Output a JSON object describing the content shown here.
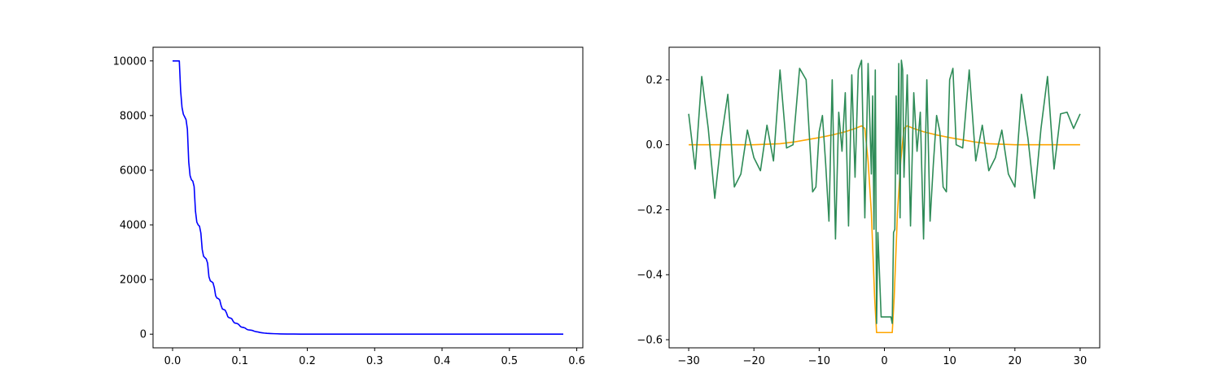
{
  "chart_data": [
    {
      "type": "line",
      "title": "",
      "xlabel": "",
      "ylabel": "",
      "xlim": [
        -0.029,
        0.609
      ],
      "ylim": [
        -500,
        10500
      ],
      "xticks": [
        0.0,
        0.1,
        0.2,
        0.3,
        0.4,
        0.5,
        0.6
      ],
      "xtick_labels": [
        "0.0",
        "0.1",
        "0.2",
        "0.3",
        "0.4",
        "0.5",
        "0.6"
      ],
      "yticks": [
        0,
        2000,
        4000,
        6000,
        8000,
        10000
      ],
      "ytick_labels": [
        "0",
        "2000",
        "4000",
        "6000",
        "8000",
        "10000"
      ],
      "grid": false,
      "series": [
        {
          "color": "#0000ff",
          "x": [
            0.0,
            0.005,
            0.01,
            0.012,
            0.014,
            0.016,
            0.018,
            0.02,
            0.022,
            0.024,
            0.026,
            0.028,
            0.03,
            0.032,
            0.034,
            0.036,
            0.038,
            0.04,
            0.042,
            0.044,
            0.046,
            0.048,
            0.05,
            0.052,
            0.054,
            0.056,
            0.058,
            0.06,
            0.062,
            0.064,
            0.066,
            0.068,
            0.07,
            0.072,
            0.074,
            0.076,
            0.078,
            0.08,
            0.082,
            0.084,
            0.086,
            0.088,
            0.09,
            0.092,
            0.094,
            0.096,
            0.098,
            0.1,
            0.102,
            0.104,
            0.106,
            0.108,
            0.11,
            0.112,
            0.115,
            0.118,
            0.121,
            0.124,
            0.127,
            0.13,
            0.133,
            0.136,
            0.14,
            0.145,
            0.15,
            0.155,
            0.16,
            0.17,
            0.18,
            0.19,
            0.2,
            0.22,
            0.24,
            0.26,
            0.3,
            0.35,
            0.4,
            0.5,
            0.58
          ],
          "y": [
            10000,
            10000,
            10000,
            8900,
            8300,
            8050,
            7950,
            7850,
            7500,
            6300,
            5800,
            5650,
            5600,
            5400,
            4500,
            4100,
            4000,
            3950,
            3700,
            3100,
            2850,
            2800,
            2750,
            2600,
            2100,
            1950,
            1920,
            1880,
            1700,
            1400,
            1320,
            1300,
            1250,
            1050,
            920,
            900,
            880,
            780,
            640,
            600,
            590,
            560,
            470,
            410,
            400,
            390,
            360,
            300,
            260,
            250,
            240,
            220,
            180,
            160,
            150,
            140,
            110,
            90,
            80,
            60,
            50,
            40,
            30,
            25,
            18,
            14,
            10,
            6,
            4,
            2,
            1,
            0,
            0,
            0,
            0,
            0,
            0,
            0,
            0
          ]
        }
      ]
    },
    {
      "type": "line",
      "title": "",
      "xlabel": "",
      "ylabel": "",
      "xlim": [
        -33.0,
        33.0
      ],
      "ylim": [
        -0.625,
        0.3
      ],
      "xticks": [
        -30,
        -20,
        -10,
        0,
        10,
        20,
        30
      ],
      "xtick_labels": [
        "−30",
        "−20",
        "−10",
        "0",
        "10",
        "20",
        "30"
      ],
      "yticks": [
        -0.6,
        -0.4,
        -0.2,
        0.0,
        0.2
      ],
      "ytick_labels": [
        "−0.6",
        "−0.4",
        "−0.2",
        "0.0",
        "0.2"
      ],
      "grid": false,
      "series": [
        {
          "color": "#ffa500",
          "x": [
            -30,
            -25,
            -20,
            -16,
            -14,
            -12,
            -10,
            -8,
            -6,
            -4.5,
            -3.5,
            -3.0,
            -2.5,
            -2.0,
            -1.5,
            -1.2,
            -1.0,
            -0.5,
            0.0,
            0.5,
            1.0,
            1.2,
            1.5,
            2.0,
            2.5,
            3.0,
            3.5,
            4.5,
            6,
            8,
            10,
            12,
            14,
            16,
            20,
            25,
            30
          ],
          "y": [
            0.0,
            0.0,
            0.0,
            0.003,
            0.008,
            0.015,
            0.022,
            0.03,
            0.04,
            0.05,
            0.058,
            0.05,
            -0.05,
            -0.21,
            -0.47,
            -0.578,
            -0.578,
            -0.578,
            -0.578,
            -0.578,
            -0.578,
            -0.578,
            -0.47,
            -0.21,
            -0.05,
            0.05,
            0.058,
            0.05,
            0.04,
            0.03,
            0.022,
            0.015,
            0.008,
            0.003,
            0.0,
            0.0,
            0.0
          ]
        },
        {
          "color": "#2e8b57",
          "x": [
            -30.0,
            -29.0,
            -28.0,
            -27.0,
            -26.0,
            -25.0,
            -24.0,
            -23.0,
            -22.0,
            -21.0,
            -20.0,
            -19.0,
            -18.0,
            -17.0,
            -16.0,
            -15.0,
            -14.0,
            -13.0,
            -12.0,
            -11.0,
            -10.5,
            -10.0,
            -9.5,
            -9.0,
            -8.5,
            -8.0,
            -7.5,
            -7.0,
            -6.5,
            -6.0,
            -5.5,
            -5.0,
            -4.5,
            -4.0,
            -3.5,
            -3.0,
            -2.5,
            -2.0,
            -1.8,
            -1.6,
            -1.4,
            -1.2,
            -1.0,
            -0.5,
            0.0,
            0.5,
            1.0,
            1.2,
            1.4,
            1.6,
            1.8,
            2.0,
            2.2,
            2.4,
            2.6,
            2.8,
            3.0,
            3.5,
            4.0,
            4.5,
            5.0,
            5.5,
            6.0,
            6.5,
            7.0,
            7.5,
            8.0,
            8.5,
            9.0,
            9.5,
            10.0,
            10.5,
            11.0,
            12.0,
            13.0,
            14.0,
            15.0,
            16.0,
            17.0,
            18.0,
            19.0,
            20.0,
            21.0,
            22.0,
            23.0,
            24.0,
            25.0,
            26.0,
            27.0,
            28.0,
            29.0,
            30.0
          ],
          "y": [
            0.095,
            -0.075,
            0.21,
            0.05,
            -0.165,
            0.02,
            0.155,
            -0.13,
            -0.09,
            0.045,
            -0.04,
            -0.08,
            0.06,
            -0.05,
            0.23,
            -0.01,
            0.0,
            0.235,
            0.2,
            -0.145,
            -0.13,
            0.04,
            0.09,
            -0.06,
            -0.235,
            0.2,
            -0.29,
            0.1,
            -0.02,
            0.16,
            -0.25,
            0.215,
            -0.1,
            0.23,
            0.26,
            -0.225,
            0.25,
            -0.09,
            0.15,
            -0.26,
            0.23,
            -0.55,
            -0.27,
            -0.53,
            -0.53,
            -0.53,
            -0.53,
            -0.55,
            -0.27,
            -0.26,
            0.15,
            -0.09,
            0.25,
            -0.225,
            0.26,
            0.23,
            -0.1,
            0.215,
            -0.25,
            0.16,
            -0.02,
            0.1,
            -0.29,
            0.2,
            -0.235,
            -0.06,
            0.09,
            0.04,
            -0.13,
            -0.145,
            0.2,
            0.235,
            0.0,
            -0.01,
            0.23,
            -0.05,
            0.06,
            -0.08,
            -0.04,
            0.045,
            -0.09,
            -0.13,
            0.155,
            0.02,
            -0.165,
            0.05,
            0.21,
            -0.075,
            0.095,
            0.1,
            0.05,
            0.095
          ]
        }
      ]
    }
  ]
}
